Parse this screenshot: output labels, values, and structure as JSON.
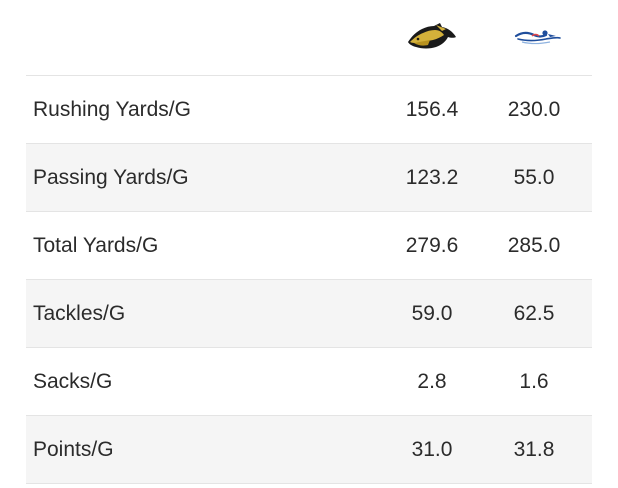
{
  "teams": {
    "home": {
      "logo_icon": "mustang-horse-head-icon",
      "primary_color": "#c9a227",
      "secondary_color": "#1a1a1a"
    },
    "away": {
      "logo_icon": "stylized-swimmer-wave-icon",
      "primary_color": "#1f4e9c",
      "secondary_color": "#ffffff"
    }
  },
  "stats": [
    {
      "label": "Rushing Yards/G",
      "home": "156.4",
      "away": "230.0"
    },
    {
      "label": "Passing Yards/G",
      "home": "123.2",
      "away": "55.0"
    },
    {
      "label": "Total Yards/G",
      "home": "279.6",
      "away": "285.0"
    },
    {
      "label": "Tackles/G",
      "home": "59.0",
      "away": "62.5"
    },
    {
      "label": "Sacks/G",
      "home": "2.8",
      "away": "1.6"
    },
    {
      "label": "Points/G",
      "home": "31.0",
      "away": "31.8"
    }
  ]
}
